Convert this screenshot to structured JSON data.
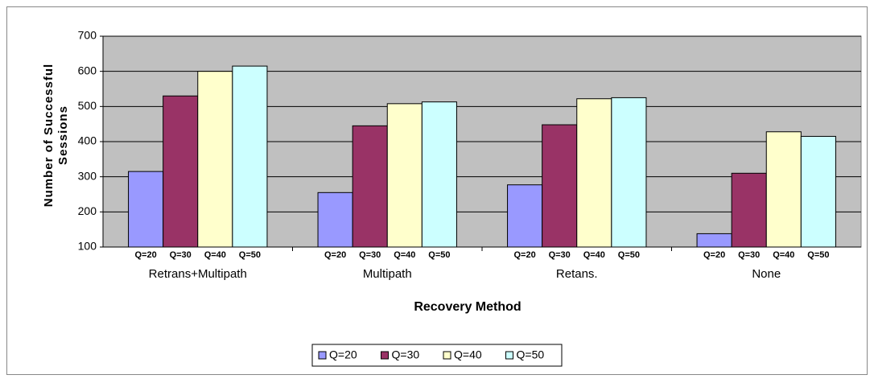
{
  "chart_data": {
    "type": "bar",
    "x_label": "Recovery Method",
    "y_label": "Number of Successful Sessions",
    "categories": [
      "Retrans+Multipath",
      "Multipath",
      "Retans.",
      "None"
    ],
    "series": [
      {
        "name": "Q=20",
        "color": "#9999ff",
        "values": [
          315,
          255,
          277,
          138
        ]
      },
      {
        "name": "Q=30",
        "color": "#993366",
        "values": [
          530,
          445,
          448,
          310
        ]
      },
      {
        "name": "Q=40",
        "color": "#ffffcc",
        "values": [
          600,
          508,
          522,
          428
        ]
      },
      {
        "name": "Q=50",
        "color": "#ccffff",
        "values": [
          615,
          513,
          525,
          415
        ]
      }
    ],
    "ylim": [
      100,
      700
    ],
    "yticks": [
      100,
      200,
      300,
      400,
      500,
      600,
      700
    ],
    "grid": true,
    "legend": "bottom",
    "plot_background": "#c0c0c0"
  }
}
